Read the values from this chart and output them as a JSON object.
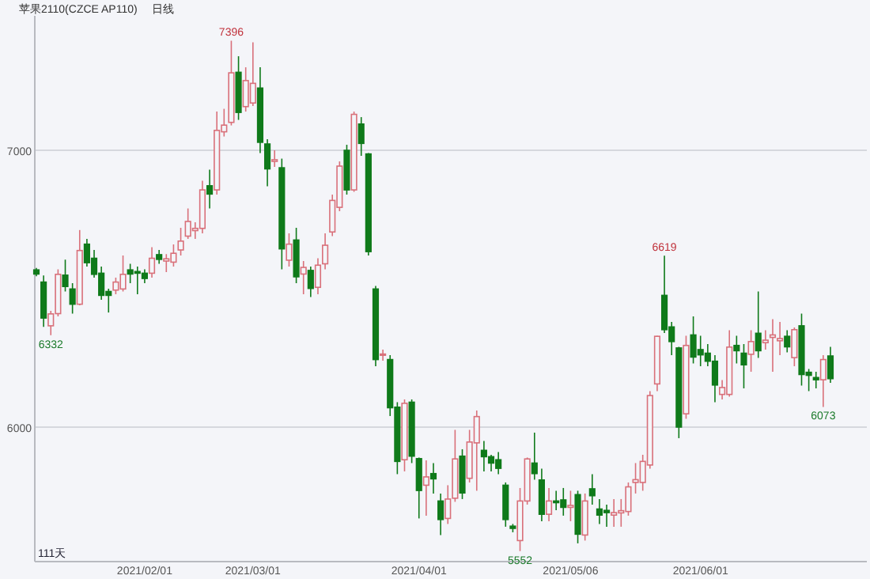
{
  "chart_data": {
    "type": "candlestick",
    "title": "苹果2110(CZCE AP110)",
    "subtitle": "日线",
    "categories": [
      null,
      null,
      null,
      null,
      null,
      null,
      null,
      null,
      null,
      null,
      null,
      null,
      null,
      null,
      null,
      "2021/02/01",
      null,
      null,
      null,
      null,
      null,
      null,
      null,
      null,
      null,
      null,
      null,
      null,
      null,
      null,
      "2021/03/01",
      null,
      null,
      null,
      null,
      null,
      null,
      null,
      null,
      null,
      null,
      null,
      null,
      null,
      null,
      null,
      null,
      null,
      null,
      null,
      null,
      null,
      null,
      "2021/04/01",
      null,
      null,
      null,
      null,
      null,
      null,
      null,
      null,
      null,
      null,
      null,
      null,
      null,
      null,
      null,
      null,
      null,
      null,
      null,
      null,
      "2021/05/06",
      null,
      null,
      null,
      null,
      null,
      null,
      null,
      null,
      null,
      null,
      null,
      null,
      null,
      null,
      null,
      null,
      null,
      "2021/06/01",
      null,
      null,
      null,
      null,
      null,
      null,
      null,
      null,
      null,
      null,
      null,
      null,
      null,
      null,
      null,
      null,
      null,
      null
    ],
    "ohlc": [
      [
        6568,
        6575,
        6545,
        6553
      ],
      [
        6524,
        6548,
        6362,
        6394
      ],
      [
        6366,
        6420,
        6332,
        6409
      ],
      [
        6410,
        6570,
        6400,
        6552
      ],
      [
        6549,
        6605,
        6490,
        6508
      ],
      [
        6499,
        6520,
        6410,
        6444
      ],
      [
        6444,
        6712,
        6440,
        6638
      ],
      [
        6661,
        6680,
        6580,
        6594
      ],
      [
        6610,
        6640,
        6540,
        6552
      ],
      [
        6556,
        6580,
        6460,
        6476
      ],
      [
        6490,
        6500,
        6414,
        6476
      ],
      [
        6495,
        6540,
        6480,
        6524
      ],
      [
        6499,
        6620,
        6490,
        6552
      ],
      [
        6568,
        6590,
        6520,
        6553
      ],
      [
        6562,
        6580,
        6480,
        6556
      ],
      [
        6556,
        6570,
        6520,
        6537
      ],
      [
        6556,
        6650,
        6540,
        6610
      ],
      [
        6623,
        6640,
        6590,
        6606
      ],
      [
        6600,
        6625,
        6560,
        6608
      ],
      [
        6596,
        6660,
        6580,
        6628
      ],
      [
        6640,
        6720,
        6620,
        6672
      ],
      [
        6690,
        6790,
        6680,
        6743
      ],
      [
        6710,
        6740,
        6680,
        6718
      ],
      [
        6718,
        6890,
        6700,
        6857
      ],
      [
        6872,
        6930,
        6790,
        6842
      ],
      [
        6857,
        7140,
        6840,
        7072
      ],
      [
        7067,
        7150,
        7050,
        7091
      ],
      [
        7101,
        7396,
        7090,
        7280
      ],
      [
        7282,
        7340,
        7110,
        7137
      ],
      [
        7158,
        7300,
        7140,
        7252
      ],
      [
        7171,
        7390,
        7160,
        7242
      ],
      [
        7225,
        7300,
        6990,
        7029
      ],
      [
        7023,
        7040,
        6870,
        6933
      ],
      [
        6960,
        7000,
        6940,
        6966
      ],
      [
        6937,
        6970,
        6570,
        6644
      ],
      [
        6603,
        6700,
        6580,
        6661
      ],
      [
        6676,
        6720,
        6520,
        6543
      ],
      [
        6553,
        6600,
        6480,
        6577
      ],
      [
        6566,
        6580,
        6470,
        6501
      ],
      [
        6505,
        6610,
        6480,
        6585
      ],
      [
        6590,
        6700,
        6570,
        6657
      ],
      [
        6705,
        6840,
        6690,
        6819
      ],
      [
        6794,
        6960,
        6780,
        6943
      ],
      [
        7000,
        7020,
        6840,
        6857
      ],
      [
        6857,
        7140,
        6850,
        7130
      ],
      [
        7095,
        7120,
        6980,
        7025
      ],
      [
        6987,
        6990,
        6620,
        6634
      ],
      [
        6499,
        6510,
        6220,
        6244
      ],
      [
        6260,
        6280,
        6240,
        6264
      ],
      [
        6244,
        6260,
        6040,
        6070
      ],
      [
        6072,
        6090,
        5830,
        5876
      ],
      [
        5882,
        6100,
        5840,
        6086
      ],
      [
        6090,
        6100,
        5870,
        5895
      ],
      [
        5886,
        5890,
        5670,
        5771
      ],
      [
        5790,
        5880,
        5680,
        5820
      ],
      [
        5832,
        5870,
        5760,
        5813
      ],
      [
        5733,
        5760,
        5610,
        5666
      ],
      [
        5670,
        5790,
        5650,
        5740
      ],
      [
        5743,
        5990,
        5730,
        5885
      ],
      [
        5895,
        5920,
        5740,
        5762
      ],
      [
        5815,
        5990,
        5800,
        5946
      ],
      [
        5943,
        6060,
        5770,
        6038
      ],
      [
        5916,
        5950,
        5840,
        5893
      ],
      [
        5893,
        5900,
        5840,
        5870
      ],
      [
        5882,
        5910,
        5830,
        5851
      ],
      [
        5790,
        5800,
        5640,
        5666
      ],
      [
        5642,
        5650,
        5620,
        5634
      ],
      [
        5590,
        5780,
        5552,
        5733
      ],
      [
        5733,
        5890,
        5720,
        5885
      ],
      [
        5870,
        5980,
        5810,
        5832
      ],
      [
        5809,
        5850,
        5660,
        5685
      ],
      [
        5685,
        5780,
        5660,
        5733
      ],
      [
        5733,
        5770,
        5700,
        5727
      ],
      [
        5737,
        5780,
        5680,
        5710
      ],
      [
        5710,
        5770,
        5660,
        5717
      ],
      [
        5756,
        5770,
        5580,
        5613
      ],
      [
        5610,
        5760,
        5590,
        5733
      ],
      [
        5777,
        5830,
        5720,
        5752
      ],
      [
        5704,
        5740,
        5650,
        5682
      ],
      [
        5699,
        5720,
        5640,
        5691
      ],
      [
        5682,
        5740,
        5640,
        5691
      ],
      [
        5690,
        5740,
        5640,
        5698
      ],
      [
        5695,
        5800,
        5680,
        5784
      ],
      [
        5800,
        5870,
        5760,
        5810
      ],
      [
        5800,
        5900,
        5770,
        5876
      ],
      [
        5863,
        6130,
        5850,
        6114
      ],
      [
        6156,
        6330,
        6130,
        6328
      ],
      [
        6476,
        6619,
        6340,
        6352
      ],
      [
        6362,
        6380,
        6260,
        6309
      ],
      [
        6286,
        6290,
        5960,
        6000
      ],
      [
        6048,
        6330,
        6030,
        6295
      ],
      [
        6333,
        6400,
        6230,
        6253
      ],
      [
        6280,
        6330,
        6220,
        6261
      ],
      [
        6267,
        6300,
        6220,
        6238
      ],
      [
        6238,
        6260,
        6090,
        6152
      ],
      [
        6118,
        6170,
        6100,
        6143
      ],
      [
        6118,
        6350,
        6110,
        6289
      ],
      [
        6295,
        6330,
        6230,
        6276
      ],
      [
        6267,
        6300,
        6140,
        6225
      ],
      [
        6263,
        6350,
        6200,
        6309
      ],
      [
        6339,
        6490,
        6250,
        6276
      ],
      [
        6305,
        6350,
        6280,
        6314
      ],
      [
        6324,
        6390,
        6200,
        6333
      ],
      [
        6312,
        6380,
        6260,
        6320
      ],
      [
        6328,
        6350,
        6270,
        6290
      ],
      [
        6251,
        6360,
        6220,
        6352
      ],
      [
        6366,
        6410,
        6150,
        6190
      ],
      [
        6198,
        6210,
        6130,
        6187
      ],
      [
        6179,
        6200,
        6140,
        6171
      ],
      [
        6171,
        6260,
        6073,
        6244
      ],
      [
        6257,
        6290,
        6160,
        6175
      ]
    ],
    "ylim": [
      5514,
      7486
    ],
    "yticks": [
      6000,
      7000
    ],
    "grid": "y",
    "annotations": [
      {
        "text": "7396",
        "y": 7396
      },
      {
        "text": "6332",
        "y": 6332
      },
      {
        "text": "6619",
        "y": 6619
      },
      {
        "text": "5552",
        "y": 5552
      },
      {
        "text": "6073",
        "y": 6073
      },
      "111天"
    ]
  }
}
